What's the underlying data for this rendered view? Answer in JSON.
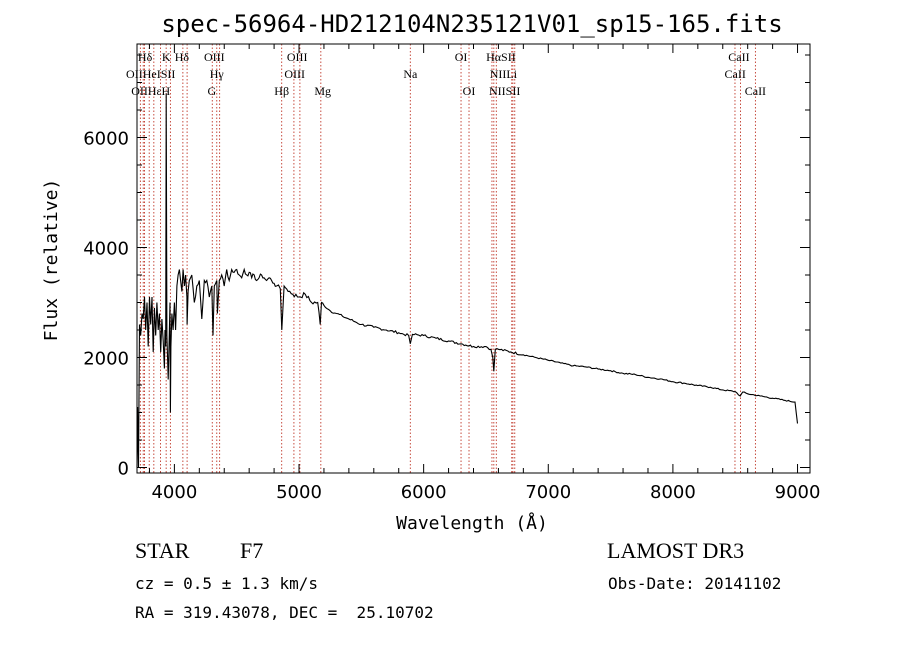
{
  "chart_data": {
    "type": "line",
    "title": "spec-56964-HD212104N235121V01_sp15-165.fits",
    "xlabel": "Wavelength (Å)",
    "ylabel": "Flux (relative)",
    "xlim": [
      3700,
      9100
    ],
    "ylim": [
      -100,
      7700
    ],
    "xticks": [
      4000,
      5000,
      6000,
      7000,
      8000,
      9000
    ],
    "xtick_labels": [
      "4000",
      "5000",
      "6000",
      "7000",
      "8000",
      "9000"
    ],
    "yticks": [
      0,
      2000,
      4000,
      6000
    ],
    "ytick_labels": [
      "0",
      "2000",
      "4000",
      "6000"
    ],
    "series": [
      {
        "name": "spectrum",
        "x": [
          3700,
          3705,
          3712,
          3720,
          3730,
          3740,
          3750,
          3760,
          3770,
          3780,
          3790,
          3800,
          3810,
          3820,
          3830,
          3840,
          3850,
          3860,
          3870,
          3880,
          3890,
          3900,
          3910,
          3920,
          3925,
          3930,
          3934,
          3940,
          3950,
          3960,
          3965,
          3968,
          3972,
          3980,
          3990,
          4000,
          4010,
          4020,
          4030,
          4040,
          4050,
          4060,
          4070,
          4080,
          4090,
          4100,
          4102,
          4110,
          4120,
          4140,
          4160,
          4180,
          4200,
          4220,
          4240,
          4260,
          4280,
          4300,
          4310,
          4320,
          4340,
          4345,
          4360,
          4380,
          4400,
          4420,
          4440,
          4460,
          4480,
          4500,
          4520,
          4540,
          4560,
          4580,
          4600,
          4620,
          4640,
          4660,
          4680,
          4700,
          4720,
          4740,
          4760,
          4780,
          4800,
          4820,
          4850,
          4862,
          4880,
          4900,
          4950,
          5000,
          5050,
          5100,
          5150,
          5170,
          5180,
          5200,
          5250,
          5300,
          5350,
          5400,
          5450,
          5500,
          5600,
          5700,
          5800,
          5880,
          5893,
          5910,
          6000,
          6100,
          6200,
          6300,
          6400,
          6500,
          6540,
          6555,
          6563,
          6575,
          6600,
          6700,
          6800,
          6900,
          7000,
          7100,
          7200,
          7300,
          7400,
          7500,
          7600,
          7700,
          7800,
          7900,
          8000,
          8100,
          8200,
          8300,
          8400,
          8500,
          8540,
          8560,
          8600,
          8700,
          8800,
          8900,
          8980,
          9000
        ],
        "values": [
          0,
          1100,
          0,
          2600,
          2400,
          2800,
          2700,
          3100,
          2500,
          3000,
          2200,
          3100,
          2600,
          3100,
          2100,
          2900,
          2400,
          3000,
          2500,
          2800,
          2100,
          2700,
          2300,
          1800,
          2500,
          2200,
          6800,
          2400,
          1600,
          2500,
          3000,
          1000,
          2200,
          2800,
          2500,
          3000,
          2500,
          3300,
          3500,
          3600,
          3400,
          3200,
          3600,
          3300,
          3500,
          3100,
          2600,
          3200,
          3400,
          3500,
          3000,
          3300,
          3400,
          2700,
          3400,
          3400,
          3100,
          3300,
          2400,
          3300,
          3400,
          2800,
          3400,
          3500,
          3300,
          3600,
          3400,
          3600,
          3550,
          3600,
          3500,
          3450,
          3600,
          3500,
          3550,
          3450,
          3500,
          3400,
          3450,
          3500,
          3450,
          3400,
          3450,
          3400,
          3350,
          3300,
          3250,
          2500,
          3300,
          3250,
          3150,
          3100,
          3150,
          3000,
          3000,
          2600,
          3000,
          2950,
          2850,
          2800,
          2750,
          2700,
          2650,
          2600,
          2550,
          2500,
          2450,
          2400,
          2250,
          2420,
          2400,
          2350,
          2300,
          2250,
          2200,
          2200,
          2150,
          2000,
          1750,
          2150,
          2150,
          2100,
          2050,
          2000,
          1950,
          1900,
          1850,
          1830,
          1790,
          1760,
          1710,
          1690,
          1640,
          1610,
          1560,
          1530,
          1490,
          1460,
          1410,
          1380,
          1300,
          1370,
          1340,
          1300,
          1260,
          1220,
          1190,
          800
        ]
      }
    ],
    "lines": [
      {
        "name": "Hδ",
        "x": 3750
      },
      {
        "name": "OII",
        "x": 3727
      },
      {
        "name": "OIII",
        "x": 3760
      },
      {
        "name": "He",
        "x": 3798
      },
      {
        "name": "Hε",
        "x": 3835
      },
      {
        "name": "K",
        "x": 3934
      },
      {
        "name": "H",
        "x": 3968
      },
      {
        "name": "HeI",
        "x": 3889
      },
      {
        "name": "SII",
        "x": 4068
      },
      {
        "name": "Hδ",
        "x": 4102
      },
      {
        "name": "Hγ",
        "x": 4340
      },
      {
        "name": "G",
        "x": 4304
      },
      {
        "name": "OIII",
        "x": 4363
      },
      {
        "name": "Hβ",
        "x": 4861
      },
      {
        "name": "OIII",
        "x": 4959
      },
      {
        "name": "OIII",
        "x": 5007
      },
      {
        "name": "Mg",
        "x": 5175
      },
      {
        "name": "Na",
        "x": 5893
      },
      {
        "name": "OI",
        "x": 6300
      },
      {
        "name": "OI",
        "x": 6364
      },
      {
        "name": "NII",
        "x": 6548
      },
      {
        "name": "Hα",
        "x": 6563
      },
      {
        "name": "NII",
        "x": 6583
      },
      {
        "name": "Li",
        "x": 6707
      },
      {
        "name": "SII",
        "x": 6716
      },
      {
        "name": "SII",
        "x": 6731
      },
      {
        "name": "CaII",
        "x": 8498
      },
      {
        "name": "CaII",
        "x": 8542
      },
      {
        "name": "CaII",
        "x": 8662
      }
    ],
    "line_labels": [
      {
        "text": "Hδ",
        "x": 3765,
        "row": 1
      },
      {
        "text": "K",
        "x": 3934,
        "row": 1
      },
      {
        "text": "Hδ",
        "x": 4060,
        "row": 1
      },
      {
        "text": "OIII",
        "x": 4320,
        "row": 1
      },
      {
        "text": "OIII",
        "x": 4985,
        "row": 1
      },
      {
        "text": "OI",
        "x": 6300,
        "row": 1
      },
      {
        "text": "HαSII",
        "x": 6620,
        "row": 1
      },
      {
        "text": "CaII",
        "x": 8530,
        "row": 1
      },
      {
        "text": "OIIHeISII",
        "x": 3810,
        "row": 2
      },
      {
        "text": "Hγ",
        "x": 4340,
        "row": 2
      },
      {
        "text": "OIII",
        "x": 4965,
        "row": 2
      },
      {
        "text": "Na",
        "x": 5893,
        "row": 2
      },
      {
        "text": "NIILi",
        "x": 6640,
        "row": 2
      },
      {
        "text": "CaII",
        "x": 8500,
        "row": 2
      },
      {
        "text": "OIIHεH",
        "x": 3810,
        "row": 3
      },
      {
        "text": "G",
        "x": 4300,
        "row": 3
      },
      {
        "text": "Hβ",
        "x": 4861,
        "row": 3
      },
      {
        "text": "Mg",
        "x": 5190,
        "row": 3
      },
      {
        "text": "OI",
        "x": 6364,
        "row": 3
      },
      {
        "text": "NIISII",
        "x": 6650,
        "row": 3
      },
      {
        "text": "CaII",
        "x": 8662,
        "row": 3
      }
    ]
  },
  "info": {
    "object_type": "STAR",
    "subclass": "F7",
    "cz": "cz = 0.5 ± 1.3 km/s",
    "coords": "RA = 319.43078, DEC =  25.10702",
    "survey": "LAMOST DR3",
    "obs_date": "Obs-Date: 20141102"
  },
  "colors": {
    "spectrum": "#000000",
    "line_marker": "#c0392b",
    "axes": "#000000",
    "background": "#ffffff"
  }
}
